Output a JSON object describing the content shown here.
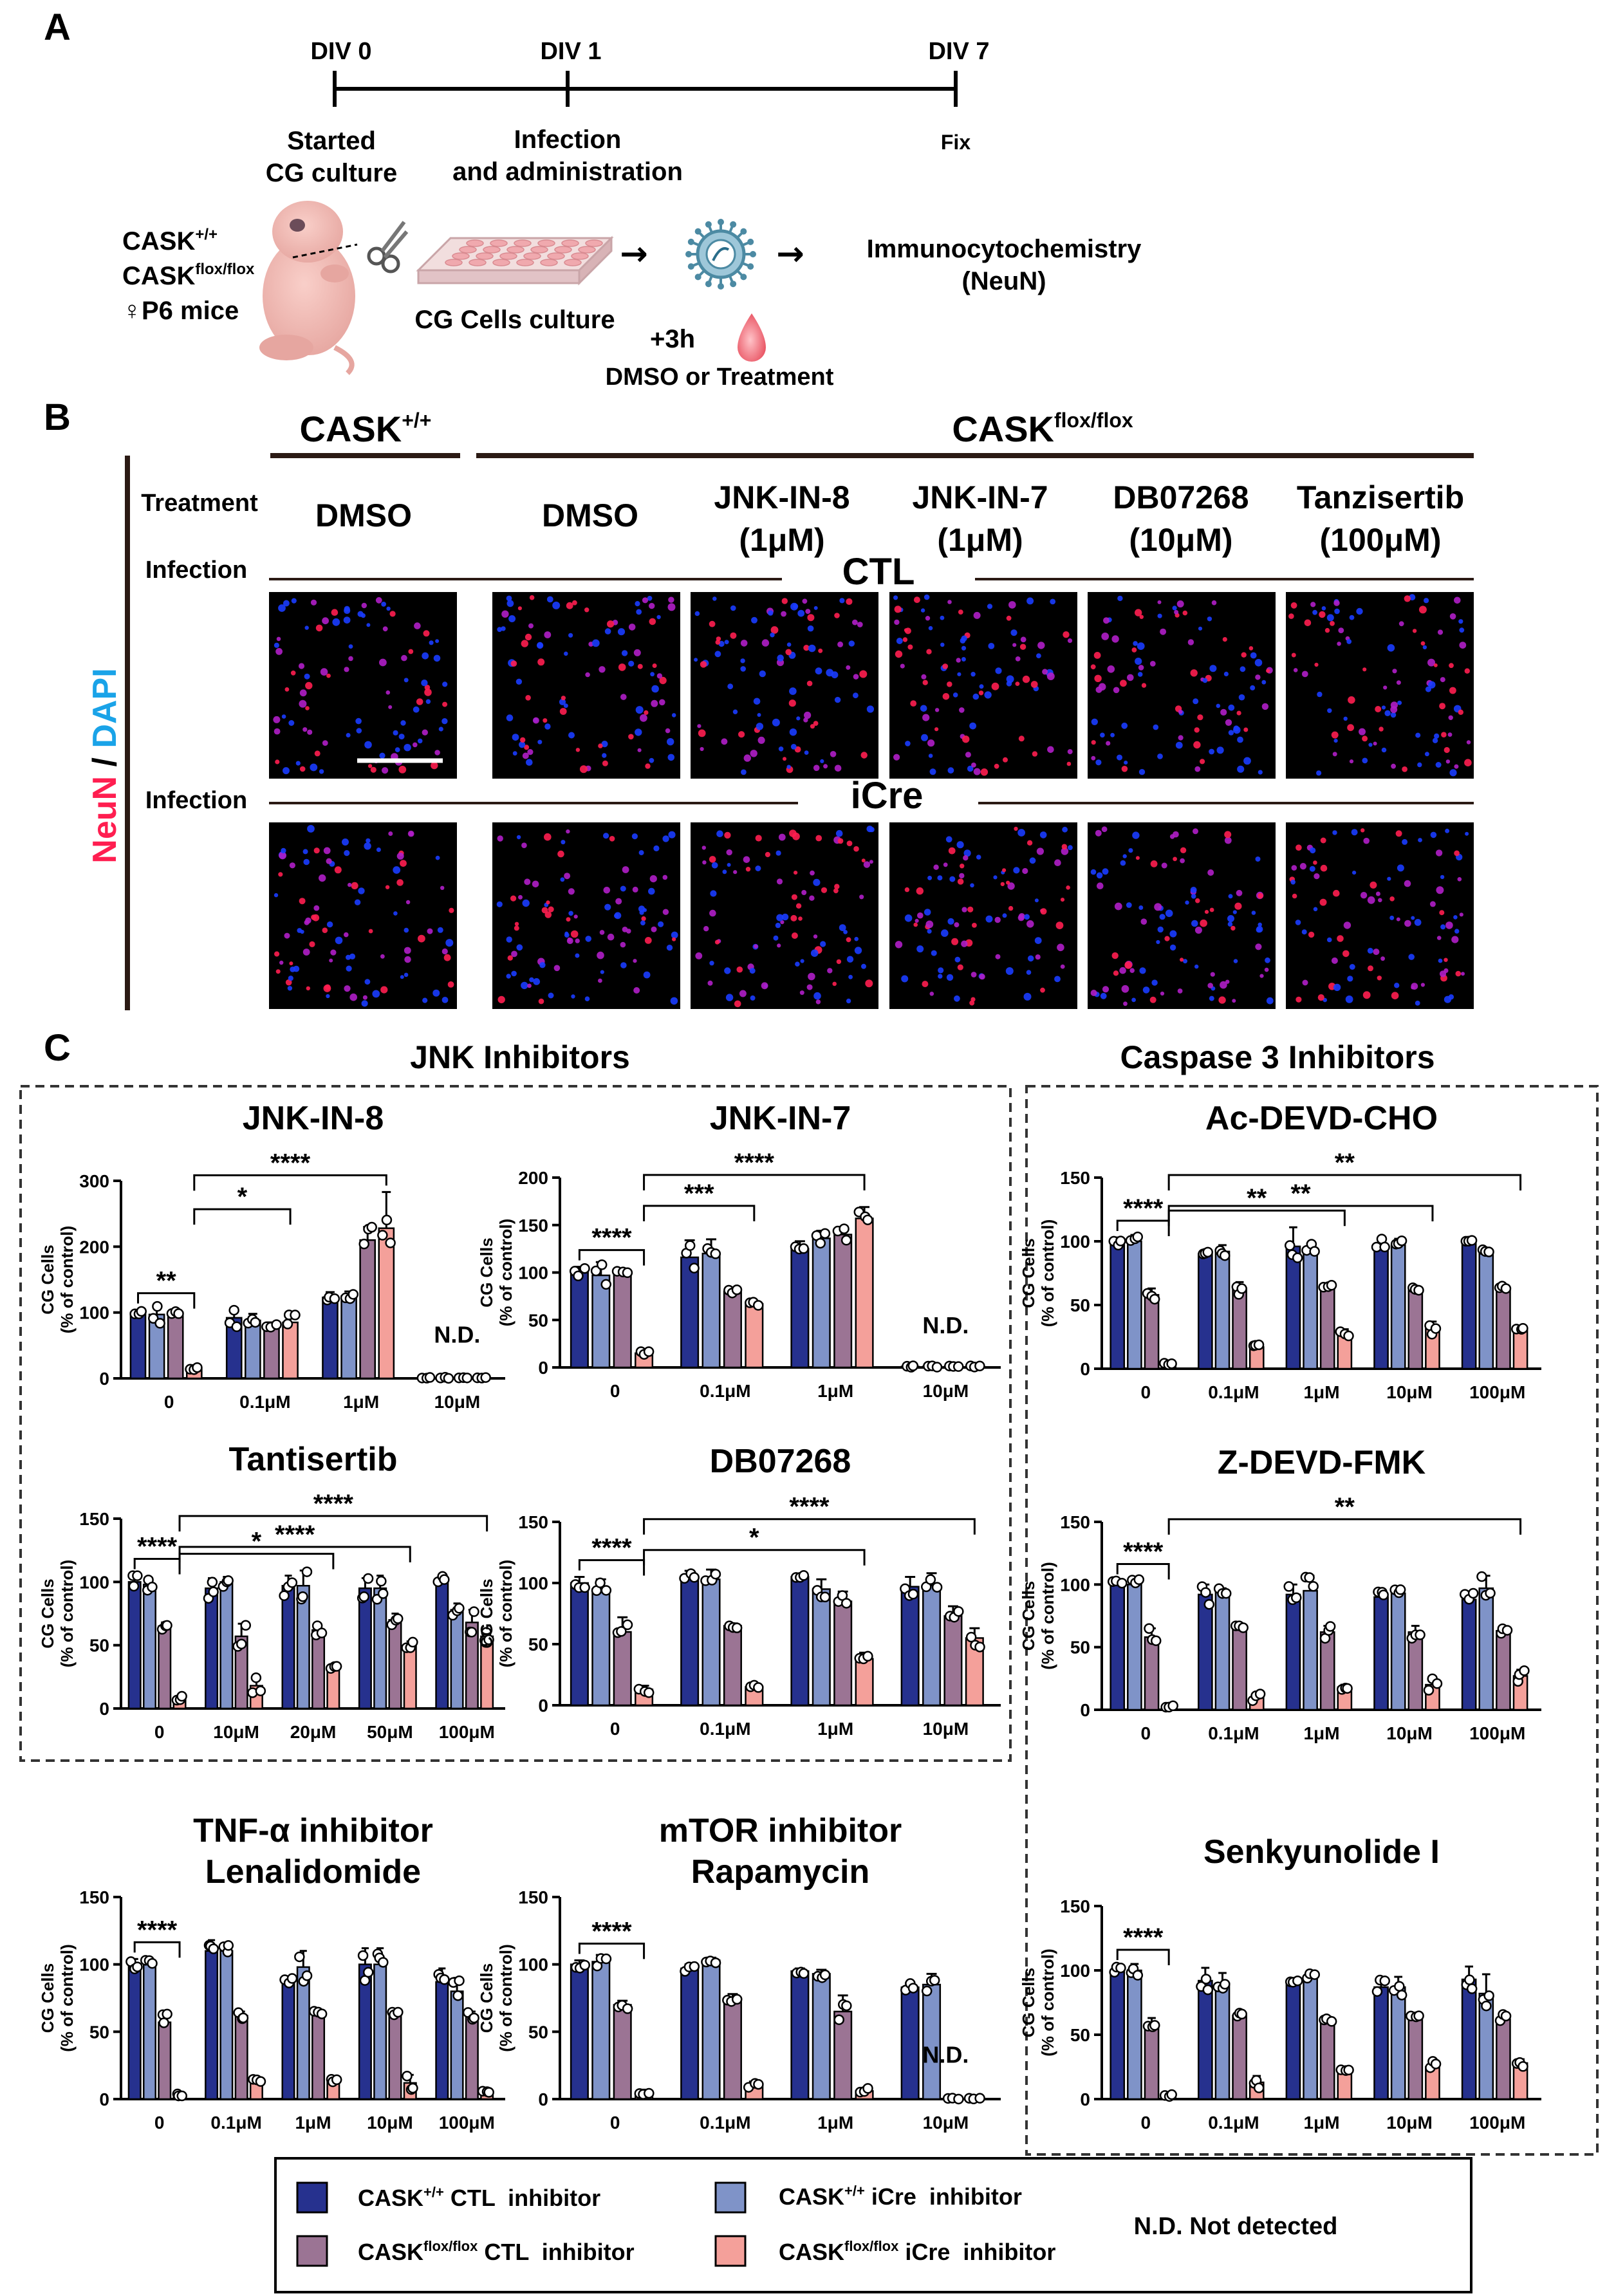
{
  "panel_labels": {
    "a": "A",
    "b": "B",
    "c": "C"
  },
  "timeline": {
    "points": [
      {
        "label": "DIV 0",
        "caption1": "Started",
        "caption2": "CG culture"
      },
      {
        "label": "DIV 1",
        "caption1": "Infection",
        "caption2": "and administration"
      },
      {
        "label": "DIV 7",
        "caption1": "Fix",
        "caption2": ""
      }
    ],
    "mice_line1_base": "CASK",
    "mice_line1_sup": "+/+",
    "mice_line2_base": "CASK",
    "mice_line2_sup": "flox/flox",
    "mice_line3": "♀P6 mice",
    "culture_label": "CG Cells culture",
    "plus3h": "+3h",
    "dmso_treatment": "DMSO or Treatment",
    "icc1": "Immunocytochemistry",
    "icc2": "(NeuN)",
    "arrow_glyph": "→"
  },
  "panel_b": {
    "genotype_wt_base": "CASK",
    "genotype_wt_sup": "+/+",
    "genotype_flox_base": "CASK",
    "genotype_flox_sup": "flox/flox",
    "treatment_label": "Treatment",
    "infection_label": "Infection",
    "columns": [
      {
        "line1": "DMSO",
        "line2": ""
      },
      {
        "line1": "DMSO",
        "line2": ""
      },
      {
        "line1": "JNK-IN-8",
        "line2": "(1μM)"
      },
      {
        "line1": "JNK-IN-7",
        "line2": "(1μM)"
      },
      {
        "line1": "DB07268",
        "line2": "(10μM)"
      },
      {
        "line1": "Tanzisertib",
        "line2": "(100μM)"
      }
    ],
    "row_ctl": "CTL",
    "row_icre": "iCre",
    "stain_neun": "NeuN",
    "stain_sep": " / ",
    "stain_dapi": "DAPI",
    "colors": {
      "neun": "#ff1e50",
      "dapi": "#1a3cff",
      "background": "#000000"
    }
  },
  "section_titles": {
    "jnk": "JNK Inhibitors",
    "caspase": "Caspase 3 Inhibitors"
  },
  "legend": {
    "items": [
      {
        "base": "CASK",
        "sup": "+/+",
        "rest": " CTL  inhibitor",
        "color": "#26318e"
      },
      {
        "base": "CASK",
        "sup": "+/+",
        "rest": " iCre  inhibitor",
        "color": "#7f93c8"
      },
      {
        "base": "CASK",
        "sup": "flox/flox",
        "rest": " CTL  inhibitor",
        "color": "#9b7494"
      },
      {
        "base": "CASK",
        "sup": "flox/flox",
        "rest": " iCre  inhibitor",
        "color": "#f4a09a"
      }
    ],
    "nd_note": "N.D. Not detected"
  },
  "chart_data": [
    {
      "type": "bar",
      "title": "JNK-IN-8",
      "subtitle": "",
      "ylabel": [
        "CG Cells",
        "(% of control)"
      ],
      "ylim": [
        0,
        300
      ],
      "yticks": [
        0,
        100,
        200,
        300
      ],
      "categories": [
        "0",
        "0.1μM",
        "1μM",
        "10μM"
      ],
      "series": [
        {
          "values": [
            100,
            92,
            123,
            1
          ]
        },
        {
          "values": [
            97,
            88,
            125,
            1
          ]
        },
        {
          "values": [
            100,
            80,
            210,
            1
          ]
        },
        {
          "values": [
            15,
            85,
            228,
            1
          ]
        }
      ],
      "errors": [
        [
          4,
          15,
          8,
          0
        ],
        [
          14,
          10,
          7,
          0
        ],
        [
          5,
          5,
          20,
          0
        ],
        [
          5,
          12,
          55,
          0
        ]
      ],
      "nd": [
        "",
        "",
        "",
        "N.D."
      ],
      "sig": [
        {
          "from": [
            0,
            0
          ],
          "to": [
            0,
            3
          ],
          "label": "**"
        },
        {
          "from": [
            0,
            3
          ],
          "to": [
            1,
            3
          ],
          "label": "*"
        },
        {
          "from": [
            0,
            3
          ],
          "to": [
            2,
            3
          ],
          "label": "****"
        }
      ]
    },
    {
      "type": "bar",
      "title": "JNK-IN-7",
      "subtitle": "",
      "ylabel": [
        "CG Cells",
        "(% of control)"
      ],
      "ylim": [
        0,
        200
      ],
      "yticks": [
        0,
        50,
        100,
        150,
        200
      ],
      "categories": [
        "0",
        "0.1μM",
        "1μM",
        "10μM"
      ],
      "series": [
        {
          "values": [
            100,
            116,
            125,
            1
          ]
        },
        {
          "values": [
            97,
            120,
            136,
            1
          ]
        },
        {
          "values": [
            100,
            80,
            140,
            1
          ]
        },
        {
          "values": [
            15,
            67,
            157,
            1
          ]
        }
      ],
      "errors": [
        [
          6,
          18,
          8,
          0
        ],
        [
          14,
          15,
          8,
          0
        ],
        [
          3,
          3,
          8,
          0
        ],
        [
          3,
          2,
          12,
          0
        ]
      ],
      "nd": [
        "",
        "",
        "",
        "N.D."
      ],
      "sig": [
        {
          "from": [
            0,
            0
          ],
          "to": [
            0,
            3
          ],
          "label": "****"
        },
        {
          "from": [
            0,
            3
          ],
          "to": [
            1,
            3
          ],
          "label": "***"
        },
        {
          "from": [
            0,
            3
          ],
          "to": [
            2,
            3
          ],
          "label": "****"
        }
      ]
    },
    {
      "type": "bar",
      "title": "Tantisertib",
      "subtitle": "",
      "ylabel": [
        "CG Cells",
        "(% of control)"
      ],
      "ylim": [
        0,
        150
      ],
      "yticks": [
        0,
        50,
        100,
        150
      ],
      "categories": [
        "0",
        "10μM",
        "20μM",
        "50μM",
        "100μM"
      ],
      "series": [
        {
          "values": [
            100,
            95,
            97,
            95,
            103
          ]
        },
        {
          "values": [
            98,
            100,
            97,
            95,
            78
          ]
        },
        {
          "values": [
            65,
            57,
            62,
            70,
            68
          ]
        },
        {
          "values": [
            8,
            18,
            33,
            50,
            57
          ]
        }
      ],
      "errors": [
        [
          5,
          8,
          8,
          8,
          3
        ],
        [
          5,
          4,
          12,
          10,
          5
        ],
        [
          3,
          10,
          5,
          5,
          10
        ],
        [
          2,
          8,
          2,
          3,
          5
        ]
      ],
      "nd": [
        "",
        "",
        "",
        "",
        ""
      ],
      "sig": [
        {
          "from": [
            0,
            0
          ],
          "to": [
            0,
            3
          ],
          "label": "****"
        },
        {
          "from": [
            0,
            3
          ],
          "to": [
            2,
            3
          ],
          "label": "*"
        },
        {
          "from": [
            0,
            3
          ],
          "to": [
            3,
            3
          ],
          "label": "****"
        },
        {
          "from": [
            0,
            3
          ],
          "to": [
            4,
            3
          ],
          "label": "****"
        }
      ]
    },
    {
      "type": "bar",
      "title": "DB07268",
      "subtitle": "",
      "ylabel": [
        "CG Cells",
        "(% of control)"
      ],
      "ylim": [
        0,
        150
      ],
      "yticks": [
        0,
        50,
        100,
        150
      ],
      "categories": [
        "0",
        "0.1μM",
        "1μM",
        "10μM"
      ],
      "series": [
        {
          "values": [
            100,
            105,
            105,
            97
          ]
        },
        {
          "values": [
            95,
            103,
            95,
            98
          ]
        },
        {
          "values": [
            60,
            65,
            85,
            73
          ]
        },
        {
          "values": [
            13,
            15,
            38,
            55
          ]
        }
      ],
      "errors": [
        [
          5,
          5,
          2,
          8
        ],
        [
          8,
          8,
          8,
          10
        ],
        [
          12,
          2,
          8,
          8
        ],
        [
          3,
          2,
          5,
          8
        ]
      ],
      "nd": [
        "",
        "",
        "",
        ""
      ],
      "sig": [
        {
          "from": [
            0,
            0
          ],
          "to": [
            0,
            3
          ],
          "label": "****"
        },
        {
          "from": [
            0,
            3
          ],
          "to": [
            2,
            3
          ],
          "label": "*"
        },
        {
          "from": [
            0,
            3
          ],
          "to": [
            3,
            3
          ],
          "label": "****"
        }
      ]
    },
    {
      "type": "bar",
      "title": "TNF-α inhibitor",
      "subtitle": "Lenalidomide",
      "ylabel": [
        "CG Cells",
        "(% of control)"
      ],
      "ylim": [
        0,
        150
      ],
      "yticks": [
        0,
        50,
        100,
        150
      ],
      "categories": [
        "0",
        "0.1μM",
        "1μM",
        "10μM",
        "100μM"
      ],
      "series": [
        {
          "values": [
            100,
            110,
            87,
            100,
            87
          ]
        },
        {
          "values": [
            100,
            110,
            98,
            100,
            80
          ]
        },
        {
          "values": [
            57,
            62,
            63,
            63,
            62
          ]
        },
        {
          "values": [
            3,
            13,
            13,
            12,
            5
          ]
        }
      ],
      "errors": [
        [
          4,
          8,
          3,
          12,
          10
        ],
        [
          5,
          5,
          12,
          12,
          10
        ],
        [
          8,
          3,
          3,
          2,
          3
        ],
        [
          1,
          2,
          2,
          6,
          1
        ]
      ],
      "nd": [
        "",
        "",
        "",
        "",
        ""
      ],
      "sig": [
        {
          "from": [
            0,
            0
          ],
          "to": [
            0,
            3
          ],
          "label": "****"
        }
      ]
    },
    {
      "type": "bar",
      "title": "mTOR inhibitor",
      "subtitle": "Rapamycin",
      "ylabel": [
        "CG Cells",
        "(% of control)"
      ],
      "ylim": [
        0,
        150
      ],
      "yticks": [
        0,
        50,
        100,
        150
      ],
      "categories": [
        "0",
        "0.1μM",
        "1μM",
        "10μM"
      ],
      "series": [
        {
          "values": [
            100,
            97,
            95,
            83
          ]
        },
        {
          "values": [
            102,
            103,
            93,
            85
          ]
        },
        {
          "values": [
            70,
            75,
            65,
            1
          ]
        },
        {
          "values": [
            5,
            10,
            6,
            1
          ]
        }
      ],
      "errors": [
        [
          3,
          3,
          2,
          3
        ],
        [
          5,
          2,
          3,
          8
        ],
        [
          3,
          3,
          12,
          0
        ],
        [
          2,
          3,
          2,
          0
        ]
      ],
      "nd": [
        "",
        "",
        "",
        "N.D."
      ],
      "sig": [
        {
          "from": [
            0,
            0
          ],
          "to": [
            0,
            3
          ],
          "label": "****"
        }
      ]
    },
    {
      "type": "bar",
      "title": "Ac-DEVD-CHO",
      "subtitle": "",
      "ylabel": [
        "CG Cells",
        "(% of control)"
      ],
      "ylim": [
        0,
        150
      ],
      "yticks": [
        0,
        50,
        100,
        150
      ],
      "categories": [
        "0",
        "0.1μM",
        "1μM",
        "10μM",
        "100μM"
      ],
      "series": [
        {
          "values": [
            100,
            90,
            96,
            95,
            100
          ]
        },
        {
          "values": [
            100,
            92,
            92,
            97,
            93
          ]
        },
        {
          "values": [
            58,
            63,
            63,
            63,
            63
          ]
        },
        {
          "values": [
            4,
            17,
            28,
            32,
            30
          ]
        }
      ],
      "errors": [
        [
          3,
          2,
          15,
          8,
          1
        ],
        [
          5,
          5,
          6,
          5,
          2
        ],
        [
          5,
          5,
          4,
          2,
          2
        ],
        [
          1,
          3,
          3,
          5,
          3
        ]
      ],
      "nd": [
        "",
        "",
        "",
        "",
        ""
      ],
      "sig": [
        {
          "from": [
            0,
            0
          ],
          "to": [
            0,
            3
          ],
          "label": "****"
        },
        {
          "from": [
            0,
            3
          ],
          "to": [
            2,
            3
          ],
          "label": "**"
        },
        {
          "from": [
            0,
            3
          ],
          "to": [
            3,
            3
          ],
          "label": "**"
        },
        {
          "from": [
            0,
            3
          ],
          "to": [
            4,
            3
          ],
          "label": "**"
        }
      ]
    },
    {
      "type": "bar",
      "title": "Z-DEVD-FMK",
      "subtitle": "",
      "ylabel": [
        "CG Cells",
        "(% of control)"
      ],
      "ylim": [
        0,
        150
      ],
      "yticks": [
        0,
        50,
        100,
        150
      ],
      "categories": [
        "0",
        "0.1μM",
        "1μM",
        "10μM",
        "100μM"
      ],
      "series": [
        {
          "values": [
            100,
            92,
            92,
            90,
            88
          ]
        },
        {
          "values": [
            100,
            94,
            95,
            93,
            97
          ]
        },
        {
          "values": [
            58,
            65,
            62,
            62,
            63
          ]
        },
        {
          "values": [
            3,
            10,
            18,
            20,
            27
          ]
        }
      ],
      "errors": [
        [
          3,
          8,
          8,
          5,
          5
        ],
        [
          4,
          3,
          12,
          3,
          10
        ],
        [
          7,
          2,
          5,
          5,
          2
        ],
        [
          1,
          3,
          2,
          5,
          5
        ]
      ],
      "nd": [
        "",
        "",
        "",
        "",
        ""
      ],
      "sig": [
        {
          "from": [
            0,
            0
          ],
          "to": [
            0,
            3
          ],
          "label": "****"
        },
        {
          "from": [
            0,
            3
          ],
          "to": [
            4,
            3
          ],
          "label": "**"
        }
      ]
    },
    {
      "type": "bar",
      "title": "Senkyunolide I",
      "subtitle": "",
      "ylabel": [
        "CG Cells",
        "(% of control)"
      ],
      "ylim": [
        0,
        150
      ],
      "yticks": [
        0,
        50,
        100,
        150
      ],
      "categories": [
        "0",
        "0.1μM",
        "1μM",
        "10μM",
        "100μM"
      ],
      "series": [
        {
          "values": [
            100,
            92,
            92,
            87,
            93
          ]
        },
        {
          "values": [
            100,
            90,
            95,
            87,
            82
          ]
        },
        {
          "values": [
            58,
            65,
            62,
            65,
            62
          ]
        },
        {
          "values": [
            3,
            13,
            23,
            25,
            28
          ]
        }
      ],
      "errors": [
        [
          3,
          10,
          2,
          8,
          10
        ],
        [
          5,
          8,
          3,
          8,
          15
        ],
        [
          5,
          2,
          2,
          2,
          5
        ],
        [
          1,
          5,
          2,
          5,
          3
        ]
      ],
      "nd": [
        "",
        "",
        "",
        "",
        ""
      ],
      "sig": [
        {
          "from": [
            0,
            0
          ],
          "to": [
            0,
            3
          ],
          "label": "****"
        }
      ]
    }
  ]
}
